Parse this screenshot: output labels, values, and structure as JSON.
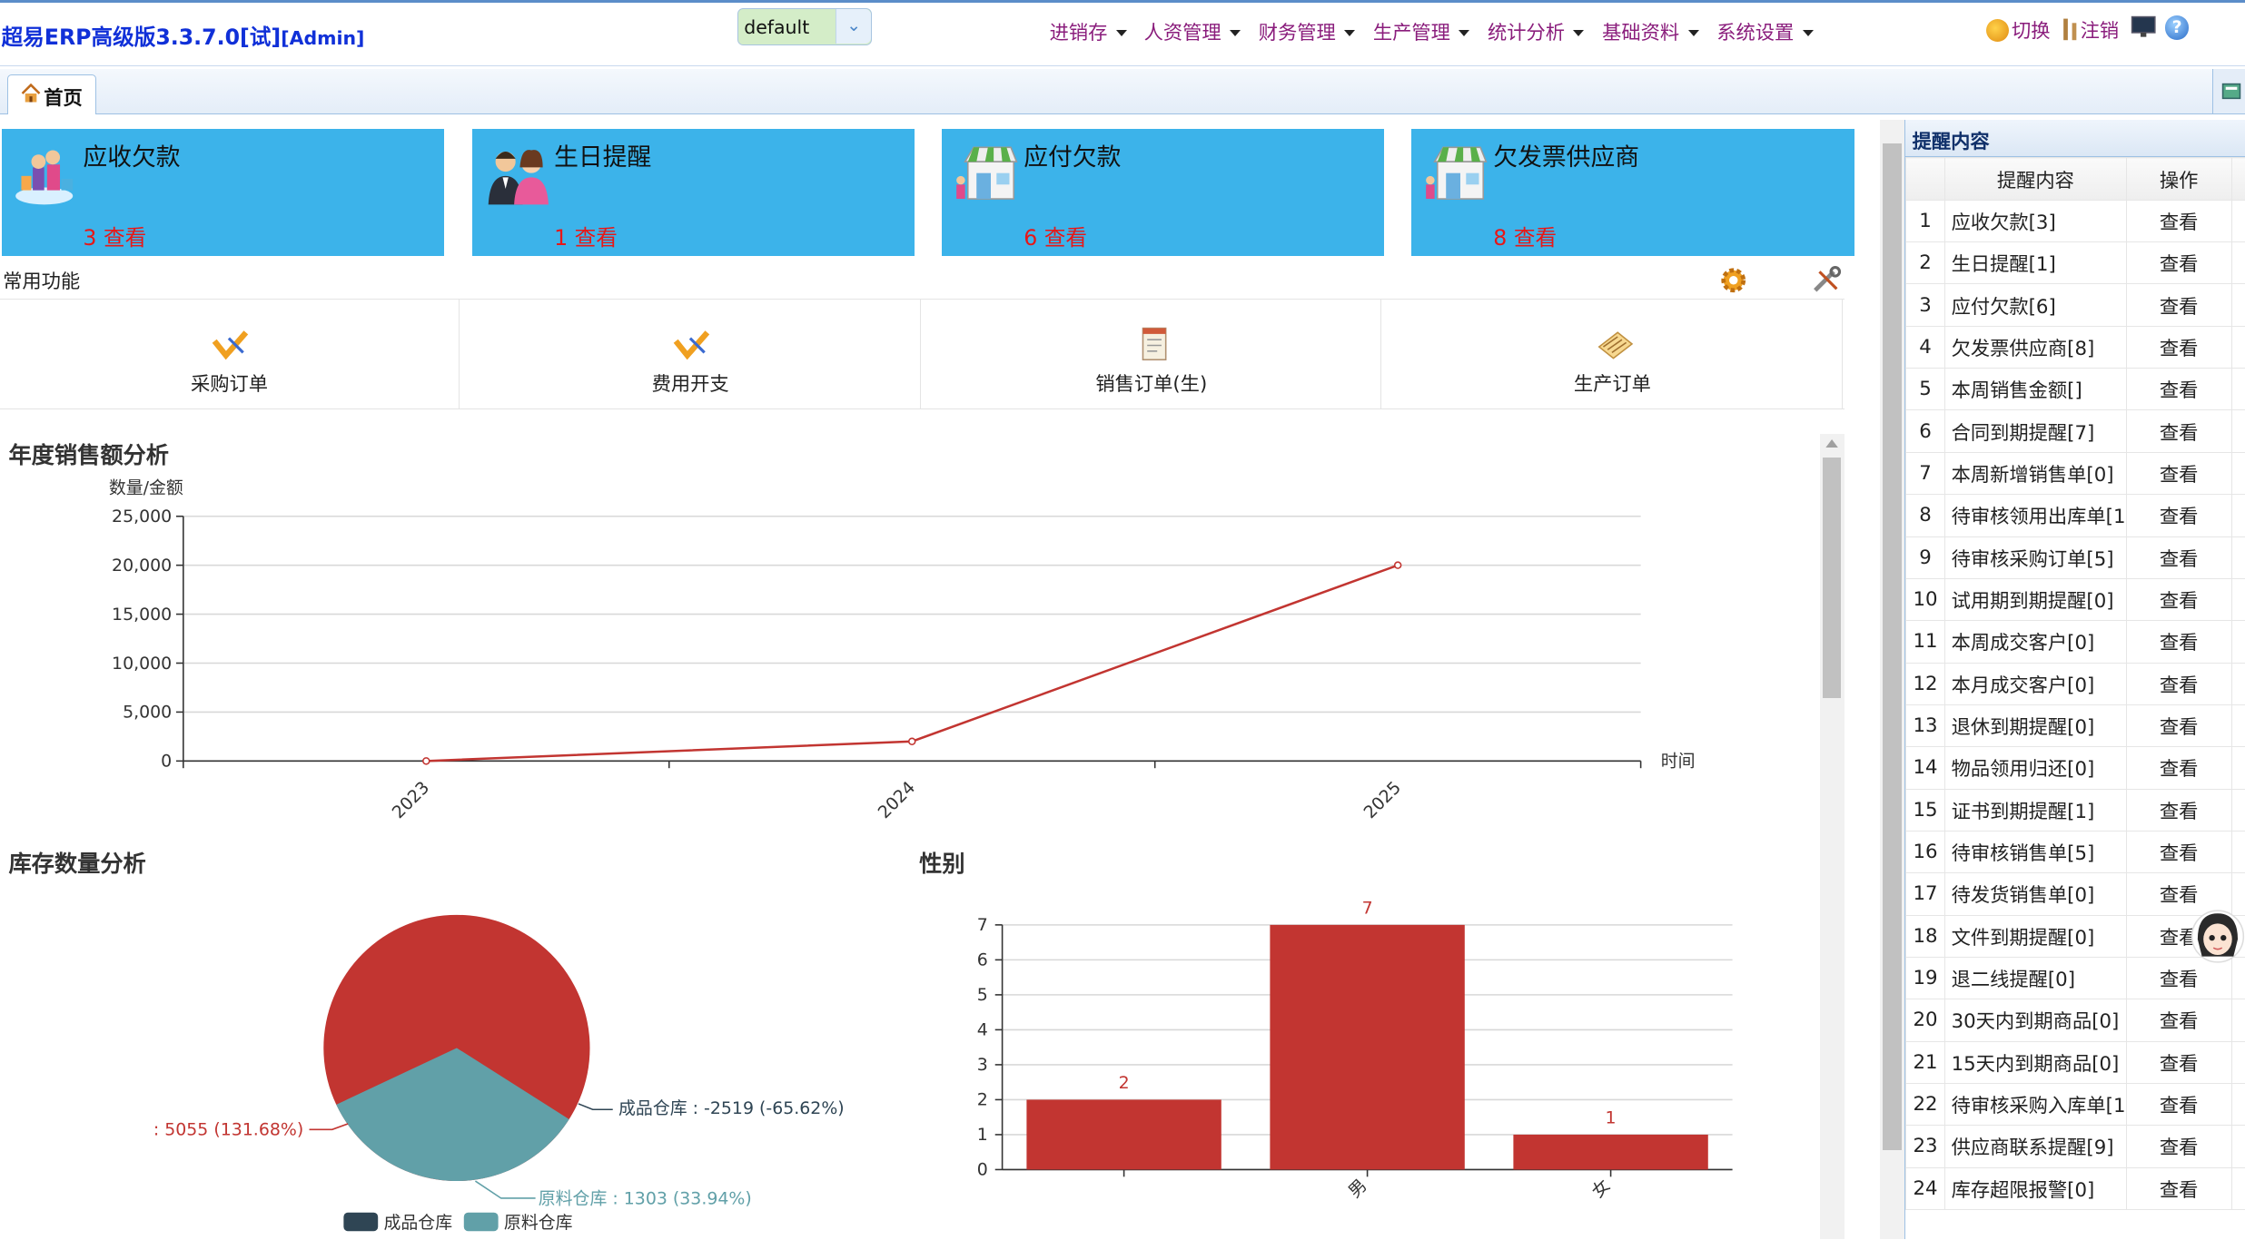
{
  "app": {
    "title": "超易ERP高级版3.3.7.0[试]",
    "user": "[Admin]"
  },
  "datasource": {
    "value": "default"
  },
  "menu": [
    "进销存",
    "人资管理",
    "财务管理",
    "生产管理",
    "统计分析",
    "基础资料",
    "系统设置"
  ],
  "toolbar": {
    "switch_label": "切换",
    "logout_label": "注销"
  },
  "tabs": [
    {
      "label": "首页"
    }
  ],
  "cards": [
    {
      "title": "应收欠款",
      "count": "3 查看"
    },
    {
      "title": "生日提醒",
      "count": "1 查看"
    },
    {
      "title": "应付欠款",
      "count": "6 查看"
    },
    {
      "title": "欠发票供应商",
      "count": "8 查看"
    }
  ],
  "common": {
    "label": "常用功能",
    "items": [
      "采购订单",
      "费用开支",
      "销售订单(生)",
      "生产订单"
    ]
  },
  "sections": {
    "sales": "年度销售额分析",
    "stock": "库存数量分析",
    "gender": "性别"
  },
  "chart_data": [
    {
      "type": "line",
      "title": "年度销售额分析",
      "ylabel": "数量/金额",
      "xlabel": "时间",
      "x": [
        "2023",
        "2024",
        "2025"
      ],
      "series": [
        {
          "values": [
            0,
            2000,
            20000
          ]
        }
      ],
      "ylim": [
        0,
        25000
      ],
      "yticks": [
        "0",
        "5,000",
        "10,000",
        "15,000",
        "20,000",
        "25,000"
      ],
      "grid": true,
      "color": "#c23531"
    },
    {
      "type": "pie",
      "title": "库存数量分析",
      "slices": [
        {
          "label": "成品仓库 : -2519 (-65.62%)",
          "value": -2519,
          "color": "#2f4554"
        },
        {
          "label": "原料仓库 : 1303 (33.94%)",
          "value": 1303,
          "color": "#61a0a8"
        },
        {
          "label": ": 5055 (131.68%)",
          "value": 5055,
          "color": "#c23531"
        }
      ],
      "legend": [
        "成品仓库",
        "原料仓库"
      ],
      "legend_position": "bottom"
    },
    {
      "type": "bar",
      "title": "性别",
      "categories": [
        "",
        "男",
        "女"
      ],
      "values": [
        2,
        7,
        1
      ],
      "ylim": [
        0,
        7
      ],
      "yticks": [
        "0",
        "1",
        "2",
        "3",
        "4",
        "5",
        "6",
        "7"
      ],
      "color": "#c23531"
    }
  ],
  "reminders": {
    "title": "提醒内容",
    "headers": {
      "content": "提醒内容",
      "op": "操作"
    },
    "rows": [
      {
        "n": "1",
        "c": "应收欠款[3]",
        "op": "查看"
      },
      {
        "n": "2",
        "c": "生日提醒[1]",
        "op": "查看"
      },
      {
        "n": "3",
        "c": "应付欠款[6]",
        "op": "查看"
      },
      {
        "n": "4",
        "c": "欠发票供应商[8]",
        "op": "查看"
      },
      {
        "n": "5",
        "c": "本周销售金额[]",
        "op": "查看"
      },
      {
        "n": "6",
        "c": "合同到期提醒[7]",
        "op": "查看"
      },
      {
        "n": "7",
        "c": "本周新增销售单[0]",
        "op": "查看"
      },
      {
        "n": "8",
        "c": "待审核领用出库单[1",
        "op": "查看"
      },
      {
        "n": "9",
        "c": "待审核采购订单[5]",
        "op": "查看"
      },
      {
        "n": "10",
        "c": "试用期到期提醒[0]",
        "op": "查看"
      },
      {
        "n": "11",
        "c": "本周成交客户[0]",
        "op": "查看"
      },
      {
        "n": "12",
        "c": "本月成交客户[0]",
        "op": "查看"
      },
      {
        "n": "13",
        "c": "退休到期提醒[0]",
        "op": "查看"
      },
      {
        "n": "14",
        "c": "物品领用归还[0]",
        "op": "查看"
      },
      {
        "n": "15",
        "c": "证书到期提醒[1]",
        "op": "查看"
      },
      {
        "n": "16",
        "c": "待审核销售单[5]",
        "op": "查看"
      },
      {
        "n": "17",
        "c": "待发货销售单[0]",
        "op": "查看"
      },
      {
        "n": "18",
        "c": "文件到期提醒[0]",
        "op": "查看"
      },
      {
        "n": "19",
        "c": "退二线提醒[0]",
        "op": "查看"
      },
      {
        "n": "20",
        "c": "30天内到期商品[0]",
        "op": "查看"
      },
      {
        "n": "21",
        "c": "15天内到期商品[0]",
        "op": "查看"
      },
      {
        "n": "22",
        "c": "待审核采购入库单[1",
        "op": "查看"
      },
      {
        "n": "23",
        "c": "供应商联系提醒[9]",
        "op": "查看"
      },
      {
        "n": "24",
        "c": "库存超限报警[0]",
        "op": "查看"
      }
    ]
  }
}
